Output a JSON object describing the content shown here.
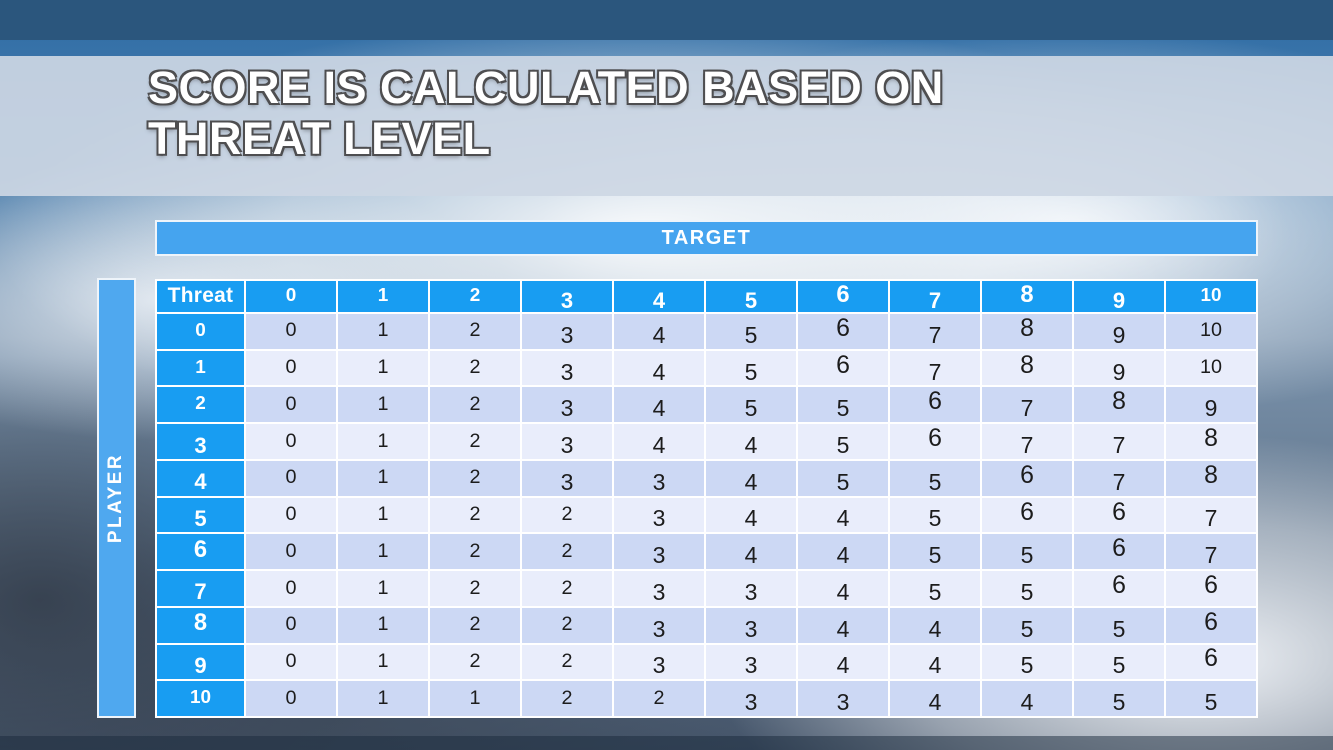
{
  "slide": {
    "title": "SCORE IS CALCULATED BASED ON\nTHREAT LEVEL"
  },
  "chart_data": {
    "type": "table",
    "title": "SCORE IS CALCULATED BASED ON THREAT LEVEL",
    "x_axis_label": "TARGET",
    "y_axis_label": "PLAYER",
    "corner_label": "Threat",
    "columns": [
      "0",
      "1",
      "2",
      "3",
      "4",
      "5",
      "6",
      "7",
      "8",
      "9",
      "10"
    ],
    "rows": [
      {
        "header": "0",
        "values": [
          0,
          1,
          2,
          3,
          4,
          5,
          6,
          7,
          8,
          9,
          10
        ]
      },
      {
        "header": "1",
        "values": [
          0,
          1,
          2,
          3,
          4,
          5,
          6,
          7,
          8,
          9,
          10
        ]
      },
      {
        "header": "2",
        "values": [
          0,
          1,
          2,
          3,
          4,
          5,
          5,
          6,
          7,
          8,
          9
        ]
      },
      {
        "header": "3",
        "values": [
          0,
          1,
          2,
          3,
          4,
          4,
          5,
          6,
          7,
          7,
          8
        ]
      },
      {
        "header": "4",
        "values": [
          0,
          1,
          2,
          3,
          3,
          4,
          5,
          5,
          6,
          7,
          8
        ]
      },
      {
        "header": "5",
        "values": [
          0,
          1,
          2,
          2,
          3,
          4,
          4,
          5,
          6,
          6,
          7
        ]
      },
      {
        "header": "6",
        "values": [
          0,
          1,
          2,
          2,
          3,
          4,
          4,
          5,
          5,
          6,
          7
        ]
      },
      {
        "header": "7",
        "values": [
          0,
          1,
          2,
          2,
          3,
          3,
          4,
          5,
          5,
          6,
          6
        ]
      },
      {
        "header": "8",
        "values": [
          0,
          1,
          2,
          2,
          3,
          3,
          4,
          4,
          5,
          5,
          6
        ]
      },
      {
        "header": "9",
        "values": [
          0,
          1,
          2,
          2,
          3,
          3,
          4,
          4,
          5,
          5,
          6
        ]
      },
      {
        "header": "10",
        "values": [
          0,
          1,
          1,
          2,
          2,
          3,
          3,
          4,
          4,
          5,
          5
        ]
      }
    ]
  },
  "colors": {
    "header_blue": "#189df2",
    "band_blue": "#45a4ef",
    "row_even": "#ccd8f4",
    "row_odd": "#e9edfb",
    "top_bar": "#2b567d",
    "title_band": "#cdd7e4",
    "title_text": "#ffffff",
    "cell_text": "#1c1c1c"
  }
}
